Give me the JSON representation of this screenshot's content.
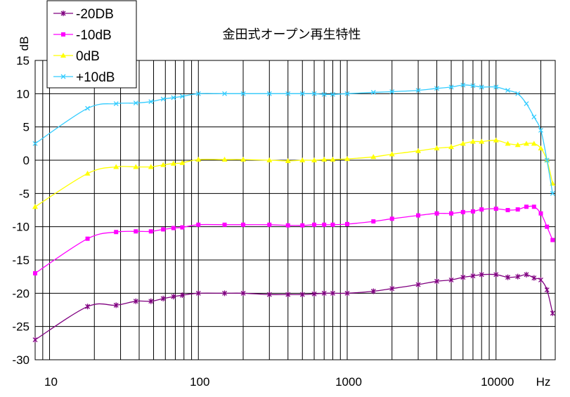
{
  "chart_data": {
    "type": "line",
    "title": "金田式オープン再生特性",
    "ylabel": "dB",
    "xlabel": "Hz",
    "x_scale": "log",
    "xlim": [
      8,
      25000
    ],
    "ylim": [
      -30,
      15
    ],
    "y_ticks": [
      "15",
      "10",
      "5",
      "0",
      "-5",
      "-10",
      "-15",
      "-20",
      "-25",
      "-30"
    ],
    "x_tick_labels": [
      "10",
      "100",
      "1000",
      "10000"
    ],
    "grid": true,
    "legend_position": "top-left",
    "x": [
      8,
      18,
      28,
      38,
      48,
      58,
      68,
      78,
      100,
      150,
      200,
      300,
      400,
      500,
      600,
      700,
      800,
      1000,
      1500,
      2000,
      3000,
      4000,
      5000,
      6000,
      7000,
      8000,
      10000,
      12000,
      14000,
      16000,
      18000,
      20000,
      22000,
      24000
    ],
    "series": [
      {
        "name": "-20DB",
        "color": "#800080",
        "marker": "star",
        "values": [
          -27,
          -22,
          -21.8,
          -21.2,
          -21.2,
          -20.8,
          -20.5,
          -20.3,
          -20,
          -20,
          -20,
          -20.2,
          -20.2,
          -20.2,
          -20.1,
          -20,
          -20,
          -20,
          -19.7,
          -19.3,
          -18.7,
          -18.2,
          -18,
          -17.6,
          -17.4,
          -17.2,
          -17.2,
          -17.6,
          -17.5,
          -17.2,
          -17.7,
          -18,
          -19.5,
          -23
        ]
      },
      {
        "name": "-10dB",
        "color": "#ff00ff",
        "marker": "square",
        "values": [
          -17,
          -11.8,
          -10.8,
          -10.7,
          -10.7,
          -10.4,
          -10.2,
          -10.1,
          -9.7,
          -9.7,
          -9.7,
          -9.7,
          -9.8,
          -9.8,
          -9.7,
          -9.7,
          -9.7,
          -9.6,
          -9.2,
          -8.8,
          -8.3,
          -8,
          -8,
          -7.8,
          -7.7,
          -7.4,
          -7.3,
          -7.5,
          -7.4,
          -7,
          -7,
          -8,
          -10,
          -12
        ]
      },
      {
        "name": "0dB",
        "color": "#ffff00",
        "marker": "triangle",
        "values": [
          -7,
          -2,
          -1,
          -1,
          -1,
          -0.7,
          -0.5,
          -0.4,
          0.1,
          0.1,
          0.1,
          0,
          -0.1,
          0,
          0,
          0.1,
          0.1,
          0.2,
          0.5,
          0.9,
          1.4,
          1.8,
          2,
          2.5,
          2.8,
          2.8,
          3,
          2.5,
          2.3,
          2.5,
          2.5,
          1.8,
          0,
          -3.5
        ]
      },
      {
        "name": "+10dB",
        "color": "#33ccff",
        "marker": "x",
        "values": [
          2.5,
          7.8,
          8.5,
          8.6,
          8.8,
          9.2,
          9.4,
          9.6,
          10,
          10,
          10,
          10,
          10,
          10,
          10,
          9.9,
          9.9,
          10,
          10.2,
          10.3,
          10.5,
          10.8,
          11,
          11.3,
          11.2,
          11,
          11,
          10.5,
          10,
          8.5,
          6.5,
          4.5,
          0,
          -5
        ]
      }
    ]
  }
}
